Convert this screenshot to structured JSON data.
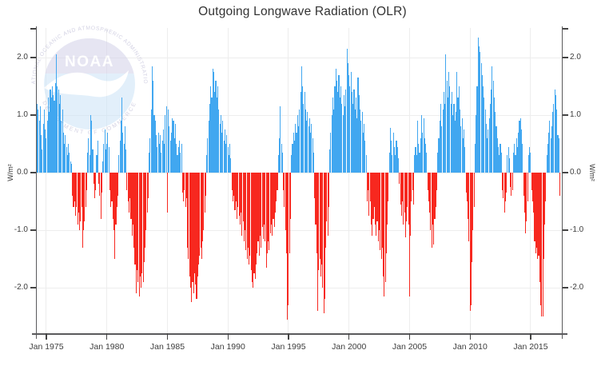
{
  "title": "Outgoing Longwave Radiation (OLR)",
  "watermark": {
    "org": "NOAA",
    "arc_top": "NATIONAL OCEANIC AND ATMOSPHERIC ADMINISTRATION",
    "arc_bottom": "DEPARTMENT OF COMMERCE"
  },
  "y_axis_left": {
    "label": "W/m²",
    "ticks": [
      "2.0",
      "1.0",
      "0.0",
      "-1.0",
      "-2.0"
    ]
  },
  "y_axis_right": {
    "label": "W/m²",
    "ticks": [
      "2.0",
      "1.0",
      "0.0",
      "-1.0",
      "-2.0"
    ]
  },
  "x_axis": {
    "ticks": [
      "Jan 1975",
      "Jan 1980",
      "Jan 1985",
      "Jan 1990",
      "Jan 1995",
      "Jan 2000",
      "Jan 2005",
      "Jan 2010",
      "Jan 2015"
    ]
  },
  "chart_data": {
    "type": "bar",
    "title": "Outgoing Longwave Radiation (OLR)",
    "xlabel": "",
    "ylabel": "W/m²",
    "ylim": [
      -2.8,
      2.5
    ],
    "grid": true,
    "bar_colors": {
      "positive": "#41a7f0",
      "negative": "#f7281f"
    },
    "start_month": "1974-04",
    "end_month": "2017-06",
    "x_tick_months": [
      "1975-01",
      "1980-01",
      "1985-01",
      "1990-01",
      "1995-01",
      "2000-01",
      "2005-01",
      "2010-01",
      "2015-01"
    ],
    "y_tick_values": [
      2,
      1,
      0,
      -1,
      -2
    ],
    "monthly_values": [
      1.2,
      1.1,
      0.9,
      1.15,
      0.65,
      0.4,
      0.85,
      1.1,
      0.75,
      0.6,
      0.9,
      1.3,
      1.05,
      1.45,
      1.3,
      1.5,
      1.35,
      1.25,
      1.55,
      2.05,
      1.5,
      1.45,
      1.2,
      1.35,
      0.9,
      1.1,
      0.7,
      0.5,
      0.65,
      0.45,
      0.3,
      0.5,
      0.35,
      0.2,
      0.15,
      -0.4,
      -0.6,
      -0.5,
      -0.75,
      -0.6,
      -0.9,
      -0.7,
      -1.0,
      -0.85,
      -0.6,
      -1.3,
      -1.0,
      -0.85,
      -0.6,
      -0.3,
      0.35,
      0.6,
      0.3,
      1.0,
      0.9,
      0.4,
      -0.2,
      -0.45,
      -0.3,
      0.3,
      0.55,
      -0.2,
      -0.4,
      -0.8,
      -0.35,
      0.2,
      0.5,
      0.75,
      0.4,
      0.5,
      0.7,
      0.45,
      -0.3,
      -0.6,
      -0.5,
      -0.8,
      -1.0,
      -1.5,
      -0.9,
      -0.6,
      -0.4,
      0.3,
      0.55,
      0.9,
      1.3,
      0.7,
      0.5,
      0.8,
      0.4,
      -0.3,
      -0.5,
      -0.7,
      -0.45,
      -0.8,
      -1.1,
      -0.9,
      -1.3,
      -1.6,
      -2.1,
      -1.7,
      -1.9,
      -2.15,
      -1.8,
      -2.0,
      -1.75,
      -1.9,
      -1.55,
      -1.3,
      -1.0,
      -0.7,
      -0.45,
      0.35,
      0.6,
      1.1,
      1.85,
      1.6,
      1.0,
      0.9,
      0.65,
      0.45,
      0.7,
      0.5,
      0.65,
      0.35,
      0.55,
      0.75,
      0.5,
      1.0,
      1.15,
      -0.7,
      1.1,
      0.8,
      0.55,
      0.7,
      0.95,
      0.9,
      0.6,
      0.85,
      0.5,
      0.3,
      0.45,
      0.55,
      0.35,
      0.5,
      -0.35,
      -0.5,
      -0.3,
      -0.6,
      -0.45,
      -1.3,
      -1.5,
      -1.8,
      -2.0,
      -2.25,
      -1.9,
      -2.1,
      -1.75,
      -1.95,
      -2.2,
      -1.8,
      -1.6,
      -1.45,
      -1.3,
      -1.5,
      -1.2,
      -1.0,
      -0.7,
      -0.4,
      0.3,
      0.6,
      0.9,
      1.2,
      1.5,
      1.3,
      1.8,
      1.75,
      1.4,
      1.6,
      1.3,
      1.5,
      1.1,
      0.85,
      1.0,
      0.7,
      0.9,
      0.55,
      0.75,
      0.5,
      0.65,
      0.45,
      0.3,
      0.5,
      0.25,
      -0.3,
      -0.5,
      -0.4,
      -0.65,
      -0.5,
      -0.8,
      -0.6,
      -0.75,
      -0.9,
      -0.7,
      -1.1,
      -0.85,
      -1.2,
      -1.0,
      -1.35,
      -1.5,
      -1.3,
      -1.6,
      -1.45,
      -1.7,
      -1.9,
      -2.0,
      -1.75,
      -1.85,
      -1.6,
      -1.4,
      -1.2,
      -1.45,
      -1.1,
      -1.3,
      -0.95,
      -1.15,
      -0.9,
      -1.2,
      -1.65,
      -1.4,
      -1.2,
      -1.35,
      -1.05,
      -0.9,
      -1.1,
      -0.8,
      -0.95,
      -0.7,
      -0.5,
      -0.3,
      0.3,
      0.6,
      1.15,
      0.5,
      0.35,
      -0.3,
      -0.6,
      -1.0,
      -1.4,
      -2.55,
      -2.3,
      -1.4,
      -0.8,
      0.3,
      0.5,
      0.7,
      0.55,
      0.85,
      0.7,
      1.0,
      0.8,
      1.1,
      1.4,
      1.85,
      1.5,
      1.2,
      1.4,
      1.1,
      0.9,
      1.05,
      0.8,
      0.95,
      0.7,
      0.85,
      0.6,
      0.35,
      -0.45,
      -0.9,
      -1.4,
      -2.4,
      -1.7,
      -1.5,
      -1.8,
      -1.6,
      -2.0,
      -2.45,
      -2.2,
      -1.3,
      -0.85,
      -1.1,
      -0.6,
      0.4,
      0.7,
      1.0,
      1.3,
      1.1,
      1.5,
      1.8,
      1.6,
      1.4,
      1.7,
      1.3,
      1.5,
      1.2,
      1.0,
      1.35,
      1.15,
      1.45,
      2.15,
      1.9,
      1.7,
      1.5,
      1.75,
      1.4,
      1.2,
      1.45,
      1.1,
      1.3,
      0.95,
      1.65,
      1.35,
      1.1,
      0.9,
      1.05,
      0.7,
      0.85,
      0.55,
      0.3,
      -0.5,
      -0.3,
      -0.75,
      -0.5,
      -0.9,
      -1.1,
      -0.8,
      -0.6,
      -0.9,
      -1.1,
      -0.85,
      -1.2,
      -1.0,
      -1.35,
      -1.5,
      -1.3,
      -1.8,
      -2.15,
      -1.9,
      -1.4,
      -0.9,
      -0.5,
      0.35,
      0.78,
      0.55,
      0.3,
      0.7,
      0.45,
      0.3,
      0.55,
      0.45,
      0.25,
      -0.2,
      -0.55,
      -0.75,
      -0.5,
      -0.9,
      -0.7,
      -1.12,
      -0.85,
      -0.6,
      -0.9,
      -2.15,
      -1.1,
      -0.5,
      -0.3,
      -0.55,
      0.3,
      0.45,
      0.3,
      0.9,
      0.5,
      0.35,
      0.6,
      1.0,
      0.7,
      0.95,
      0.6,
      0.5,
      0.35,
      -0.3,
      -0.5,
      -0.7,
      -1.0,
      -1.3,
      -0.9,
      -1.25,
      -0.8,
      -0.6,
      -0.3,
      0.35,
      0.6,
      0.9,
      1.2,
      0.8,
      1.1,
      1.4,
      1.2,
      2.05,
      1.6,
      1.3,
      1.75,
      1.5,
      1.2,
      1.4,
      1.0,
      1.2,
      0.9,
      1.05,
      1.75,
      1.3,
      1.5,
      1.1,
      0.8,
      0.95,
      0.6,
      0.75,
      0.45,
      -0.35,
      -0.5,
      -0.8,
      -1.2,
      -2.4,
      -2.3,
      -1.55,
      -1.0,
      -0.6,
      0.5,
      1.0,
      1.5,
      2.35,
      2.2,
      2.1,
      1.9,
      1.7,
      1.5,
      1.3,
      1.1,
      0.85,
      0.6,
      0.75,
      0.95,
      1.2,
      1.45,
      1.85,
      1.6,
      1.3,
      1.05,
      0.8,
      0.6,
      0.45,
      0.3,
      0.5,
      0.35,
      -0.3,
      -0.45,
      -0.7,
      -0.5,
      -0.35,
      0.3,
      0.45,
      0.25,
      -0.25,
      -0.4,
      -0.3,
      0.35,
      0.5,
      0.3,
      0.6,
      0.45,
      0.7,
      0.9,
      0.95,
      0.75,
      0.5,
      -0.4,
      -0.7,
      -1.05,
      -0.85,
      -0.5,
      0.3,
      0.45,
      0.35,
      -0.3,
      -0.5,
      -0.7,
      -1.2,
      -1.4,
      -1.3,
      -1.5,
      -1.45,
      -1.9,
      -2.3,
      -2.5,
      -2.5,
      -1.5,
      -0.9,
      -0.5,
      0.3,
      0.5,
      0.7,
      0.9,
      0.6,
      0.8,
      1.05,
      1.2,
      1.45,
      1.35,
      1.1,
      0.65,
      0.6,
      -0.4
    ]
  }
}
